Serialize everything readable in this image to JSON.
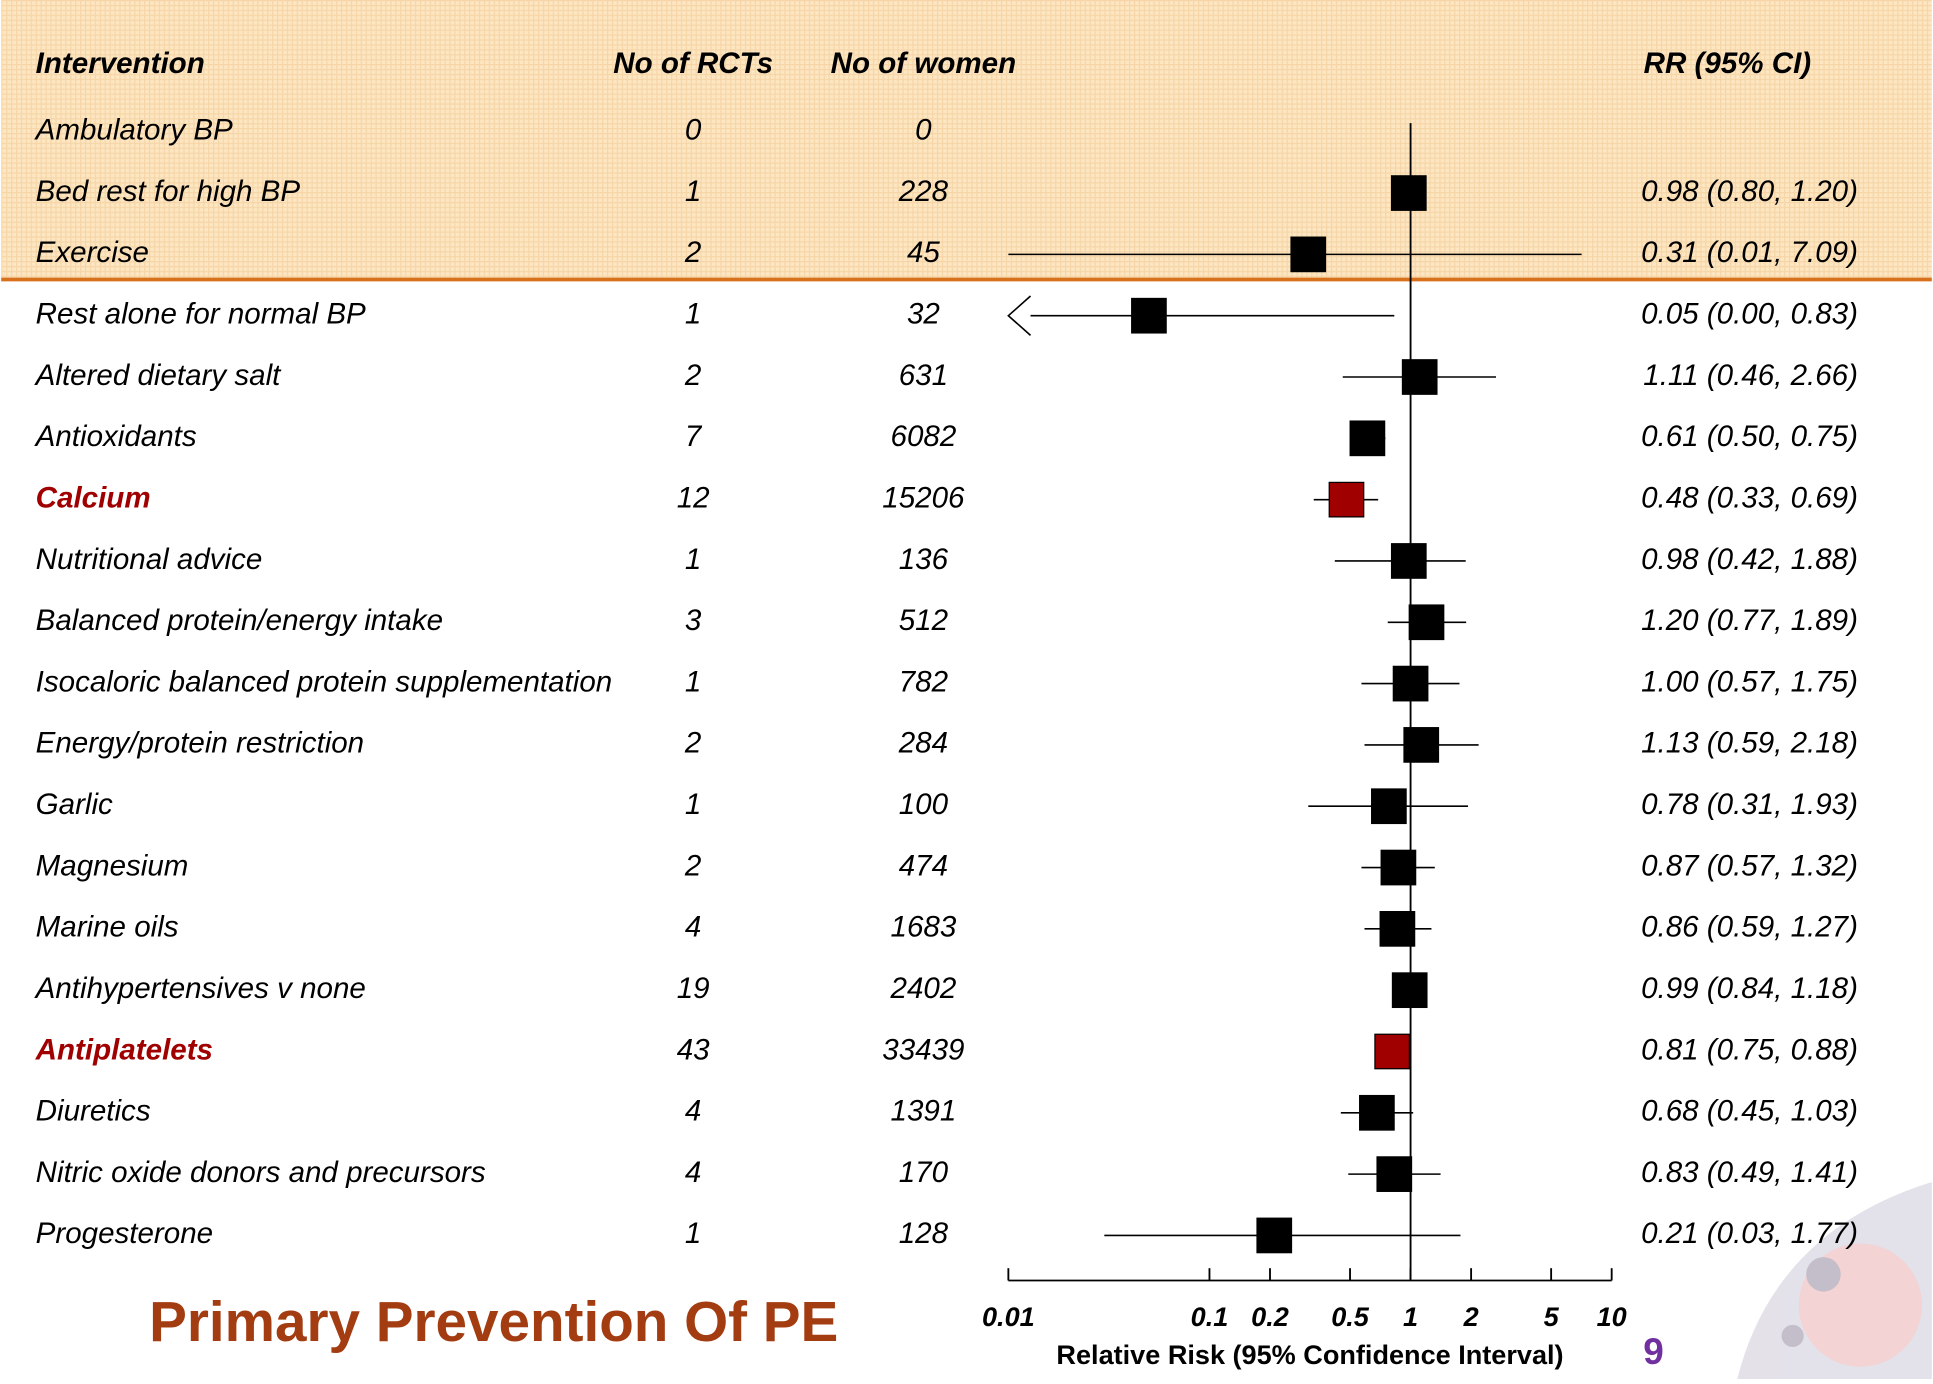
{
  "chart_data": {
    "type": "forest",
    "title": "Primary Prevention Of PE",
    "page_number": "9",
    "columns": [
      "Intervention",
      "No of RCTs",
      "No of  women",
      "RR (95% CI)"
    ],
    "x_label": "Relative Risk (95% Confidence Interval)",
    "categories": [
      "Ambulatory BP",
      "Bed rest for high BP",
      "Exercise",
      "Rest alone for normal BP",
      "Altered dietary salt",
      "Antioxidants",
      "Calcium",
      "Nutritional advice",
      "Balanced protein/energy intake",
      "Isocaloric balanced protein supplementation",
      "Energy/protein restriction",
      "Garlic",
      "Magnesium",
      "Marine oils",
      "Antihypertensives v none",
      "Antiplatelets",
      "Diuretics",
      "Nitric oxide donors and precursors",
      "Progesterone"
    ],
    "rcts": [
      0,
      1,
      2,
      1,
      2,
      7,
      12,
      1,
      3,
      1,
      2,
      1,
      2,
      4,
      19,
      43,
      4,
      4,
      1
    ],
    "women": [
      0,
      228,
      45,
      32,
      631,
      6082,
      15206,
      136,
      512,
      782,
      284,
      100,
      474,
      1683,
      2402,
      33439,
      1391,
      170,
      128
    ],
    "values": [
      null,
      0.98,
      0.31,
      0.05,
      1.11,
      0.61,
      0.48,
      0.98,
      1.2,
      1,
      1.13,
      0.78,
      0.87,
      0.86,
      0.99,
      0.81,
      0.68,
      0.83,
      0.21
    ],
    "ci_low": [
      null,
      0.8,
      0.01,
      0,
      0.46,
      0.5,
      0.33,
      0.42,
      0.77,
      0.57,
      0.59,
      0.31,
      0.57,
      0.59,
      0.84,
      0.75,
      0.45,
      0.49,
      0.03
    ],
    "ci_high": [
      null,
      1.2,
      7.09,
      0.83,
      2.66,
      0.75,
      0.69,
      1.88,
      1.89,
      1.75,
      2.18,
      1.93,
      1.32,
      1.27,
      1.18,
      0.88,
      1.03,
      1.41,
      1.77
    ],
    "value_labels": [
      null,
      "0.98 (0.80, 1.20)",
      "0.31 (0.01, 7.09)",
      "0.05 (0.00, 0.83)",
      "1.11 (0.46, 2.66)",
      "0.61 (0.50, 0.75)",
      "0.48 (0.33, 0.69)",
      "0.98 (0.42, 1.88)",
      "1.20 (0.77, 1.89)",
      "1.00 (0.57, 1.75)",
      "1.13 (0.59, 2.18)",
      "0.78 (0.31, 1.93)",
      "0.87 (0.57, 1.32)",
      "0.86 (0.59, 1.27)",
      "0.99 (0.84, 1.18)",
      "0.81 (0.75, 0.88)",
      "0.68 (0.45, 1.03)",
      "0.83 (0.49, 1.41)",
      "0.21 (0.03, 1.77)"
    ],
    "box_colors": [
      "#000000",
      "#000000",
      "#000000",
      "#000000",
      "#000000",
      "#000000",
      "#a00000",
      "#000000",
      "#000000",
      "#000000",
      "#000000",
      "#000000",
      "#000000",
      "#000000",
      "#000000",
      "#a00000",
      "#000000",
      "#000000",
      "#000000"
    ],
    "xscale": "log",
    "xlim": [
      0.01,
      10
    ],
    "xticks": [
      0.01,
      0.1,
      0.2,
      0.5,
      1,
      2,
      5,
      10
    ]
  }
}
